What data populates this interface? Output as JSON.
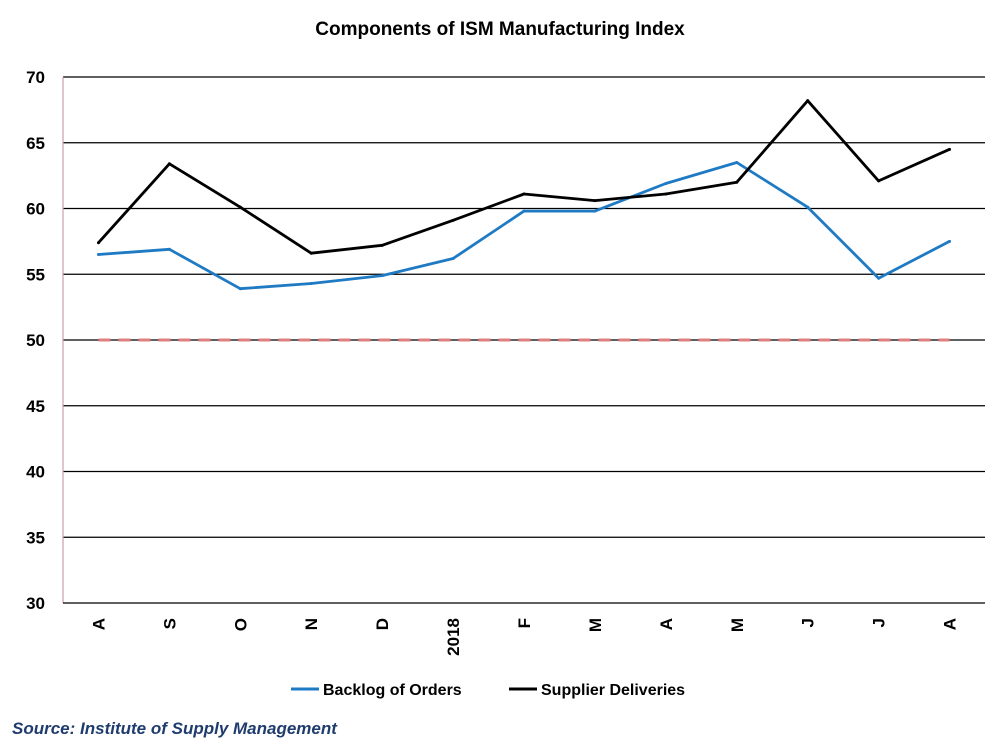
{
  "chart_data": {
    "type": "line",
    "title": "Components of ISM Manufacturing Index",
    "categories": [
      "A",
      "S",
      "O",
      "N",
      "D",
      "2018",
      "F",
      "M",
      "A",
      "M",
      "J",
      "J",
      "A"
    ],
    "ylim": [
      30,
      70
    ],
    "yticks": [
      30,
      35,
      40,
      45,
      50,
      55,
      60,
      65,
      70
    ],
    "grid": true,
    "reference_line": {
      "value": 50,
      "color": "#e07f7f",
      "style": "dashed"
    },
    "series": [
      {
        "name": "Backlog of Orders",
        "color": "#1f7ac4",
        "values": [
          56.5,
          56.9,
          53.9,
          54.3,
          54.9,
          56.2,
          59.8,
          59.8,
          61.9,
          63.5,
          60.1,
          54.7,
          57.5
        ]
      },
      {
        "name": "Supplier Deliveries",
        "color": "#000000",
        "values": [
          57.4,
          63.4,
          60.1,
          56.6,
          57.2,
          59.1,
          61.1,
          60.6,
          61.1,
          62.0,
          68.2,
          62.1,
          64.5
        ]
      }
    ],
    "legend_position": "bottom-center",
    "source": "Source: Institute of Supply Management"
  }
}
